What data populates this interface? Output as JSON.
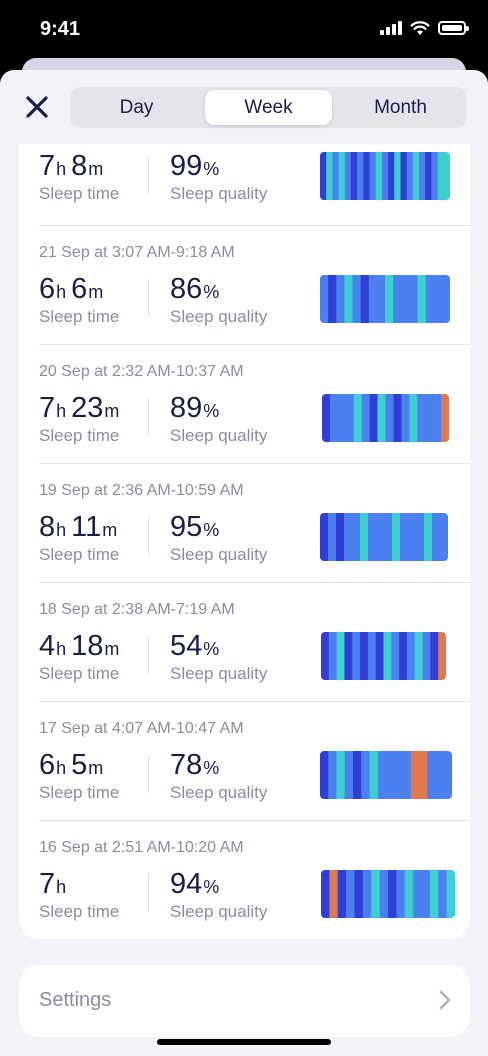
{
  "status_bar": {
    "time": "9:41"
  },
  "tabs": [
    {
      "label": "Day",
      "active": false
    },
    {
      "label": "Week",
      "active": true
    },
    {
      "label": "Month",
      "active": false
    }
  ],
  "labels": {
    "sleep_time": "Sleep time",
    "sleep_quality": "Sleep quality"
  },
  "records": [
    {
      "date": "",
      "hours": "7",
      "minutes": "8",
      "quality": "99",
      "graph": [
        "D",
        "C",
        "L",
        "C",
        "L",
        "D",
        "L",
        "D",
        "L",
        "C",
        "L",
        "D",
        "C",
        "D",
        "L",
        "C",
        "L",
        "D",
        "L",
        "C",
        "C"
      ]
    },
    {
      "date": "21 Sep at 3:07 AM-9:18 AM",
      "hours": "6",
      "minutes": "6",
      "quality": "86",
      "graph": [
        "L",
        "D",
        "L",
        "C",
        "L",
        "D",
        "L",
        "L",
        "C",
        "L",
        "L",
        "L",
        "C",
        "L",
        "L",
        "L"
      ]
    },
    {
      "date": "20 Sep at 2:32 AM-10:37 AM",
      "hours": "7",
      "minutes": "23",
      "quality": "89",
      "graph": [
        "D",
        "L",
        "L",
        "L",
        "C",
        "L",
        "D",
        "C",
        "L",
        "D",
        "L",
        "C",
        "L",
        "L",
        "L",
        "O"
      ]
    },
    {
      "date": "19 Sep at 2:36 AM-10:59 AM",
      "hours": "8",
      "minutes": "11",
      "quality": "95",
      "graph": [
        "D",
        "L",
        "D",
        "L",
        "L",
        "C",
        "L",
        "L",
        "L",
        "C",
        "L",
        "L",
        "L",
        "C",
        "L",
        "L"
      ]
    },
    {
      "date": "18 Sep at 2:38 AM-7:19 AM",
      "hours": "4",
      "minutes": "18",
      "quality": "54",
      "graph": [
        "D",
        "L",
        "C",
        "D",
        "L",
        "D",
        "L",
        "D",
        "C",
        "L",
        "D",
        "L",
        "C",
        "L",
        "D",
        "O"
      ]
    },
    {
      "date": "17 Sep at 4:07 AM-10:47 AM",
      "hours": "6",
      "minutes": "5",
      "quality": "78",
      "graph": [
        "D",
        "L",
        "C",
        "L",
        "D",
        "L",
        "C",
        "L",
        "L",
        "L",
        "L",
        "O",
        "O",
        "L",
        "L",
        "L"
      ]
    },
    {
      "date": "16 Sep at 2:51 AM-10:20 AM",
      "hours": "7",
      "minutes": "",
      "quality": "94",
      "graph": [
        "D",
        "O",
        "D",
        "L",
        "D",
        "L",
        "C",
        "L",
        "D",
        "L",
        "C",
        "L",
        "L",
        "C",
        "L",
        "C"
      ]
    }
  ],
  "units": {
    "hours": "h",
    "minutes": "m",
    "percent": "%"
  },
  "settings": {
    "label": "Settings"
  },
  "colors": {
    "L": "#4a80f0",
    "D": "#2f3fd6",
    "C": "#3ed0d0",
    "O": "#e07850",
    "accent": "#1b1c4a"
  }
}
